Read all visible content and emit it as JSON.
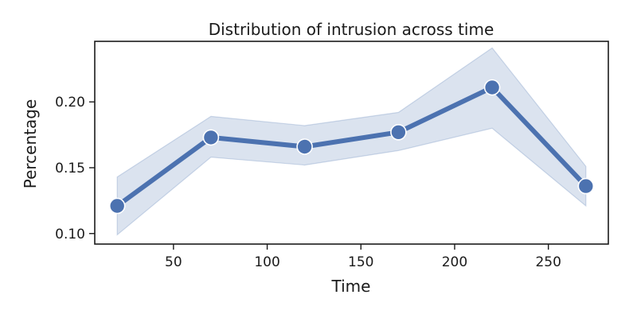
{
  "chart_data": {
    "type": "line",
    "title": "Distribution of intrusion across time",
    "xlabel": "Time",
    "ylabel": "Percentage",
    "x": [
      20,
      70,
      120,
      170,
      220,
      270
    ],
    "series": [
      {
        "values": [
          0.121,
          0.173,
          0.166,
          0.177,
          0.211,
          0.136
        ],
        "ci_low": [
          0.099,
          0.158,
          0.152,
          0.163,
          0.18,
          0.121
        ],
        "ci_high": [
          0.143,
          0.189,
          0.182,
          0.192,
          0.241,
          0.151
        ]
      }
    ],
    "xlim": [
      8,
      282
    ],
    "ylim": [
      0.092,
      0.246
    ],
    "xticks": [
      50,
      100,
      150,
      200,
      250
    ],
    "xtick_labels": [
      "50",
      "100",
      "150",
      "200",
      "250"
    ],
    "yticks": [
      0.1,
      0.15,
      0.2
    ],
    "ytick_labels": [
      "0.10",
      "0.15",
      "0.20"
    ],
    "grid": false,
    "legend": "none",
    "colors": {
      "line": "#4c72b0",
      "band": "#4c72b0",
      "marker_edge": "#ffffff",
      "axes": "#1a1a1a"
    }
  }
}
